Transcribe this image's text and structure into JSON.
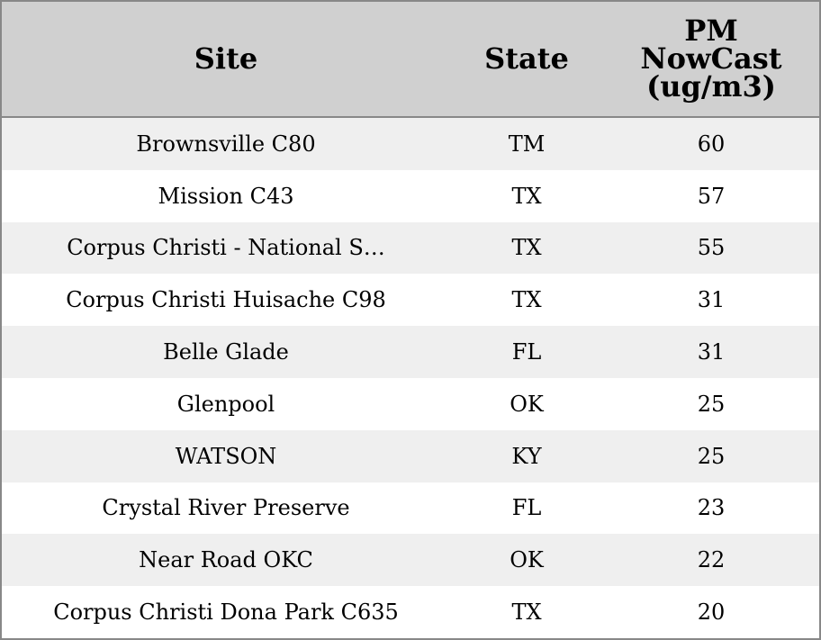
{
  "table": {
    "headers": [
      "Site",
      "State",
      "PM NowCast (ug/m3)"
    ],
    "rows": [
      [
        "Brownsville C80",
        "TM",
        60
      ],
      [
        "Mission C43",
        "TX",
        57
      ],
      [
        "Corpus Christi - National S…",
        "TX",
        55
      ],
      [
        "Corpus Christi Huisache C98",
        "TX",
        31
      ],
      [
        "Belle Glade",
        "FL",
        31
      ],
      [
        "Glenpool",
        "OK",
        25
      ],
      [
        "WATSON",
        "KY",
        25
      ],
      [
        "Crystal River Preserve",
        "FL",
        23
      ],
      [
        "Near Road OKC",
        "OK",
        22
      ],
      [
        "Corpus Christi Dona Park C635",
        "TX",
        20
      ]
    ]
  }
}
